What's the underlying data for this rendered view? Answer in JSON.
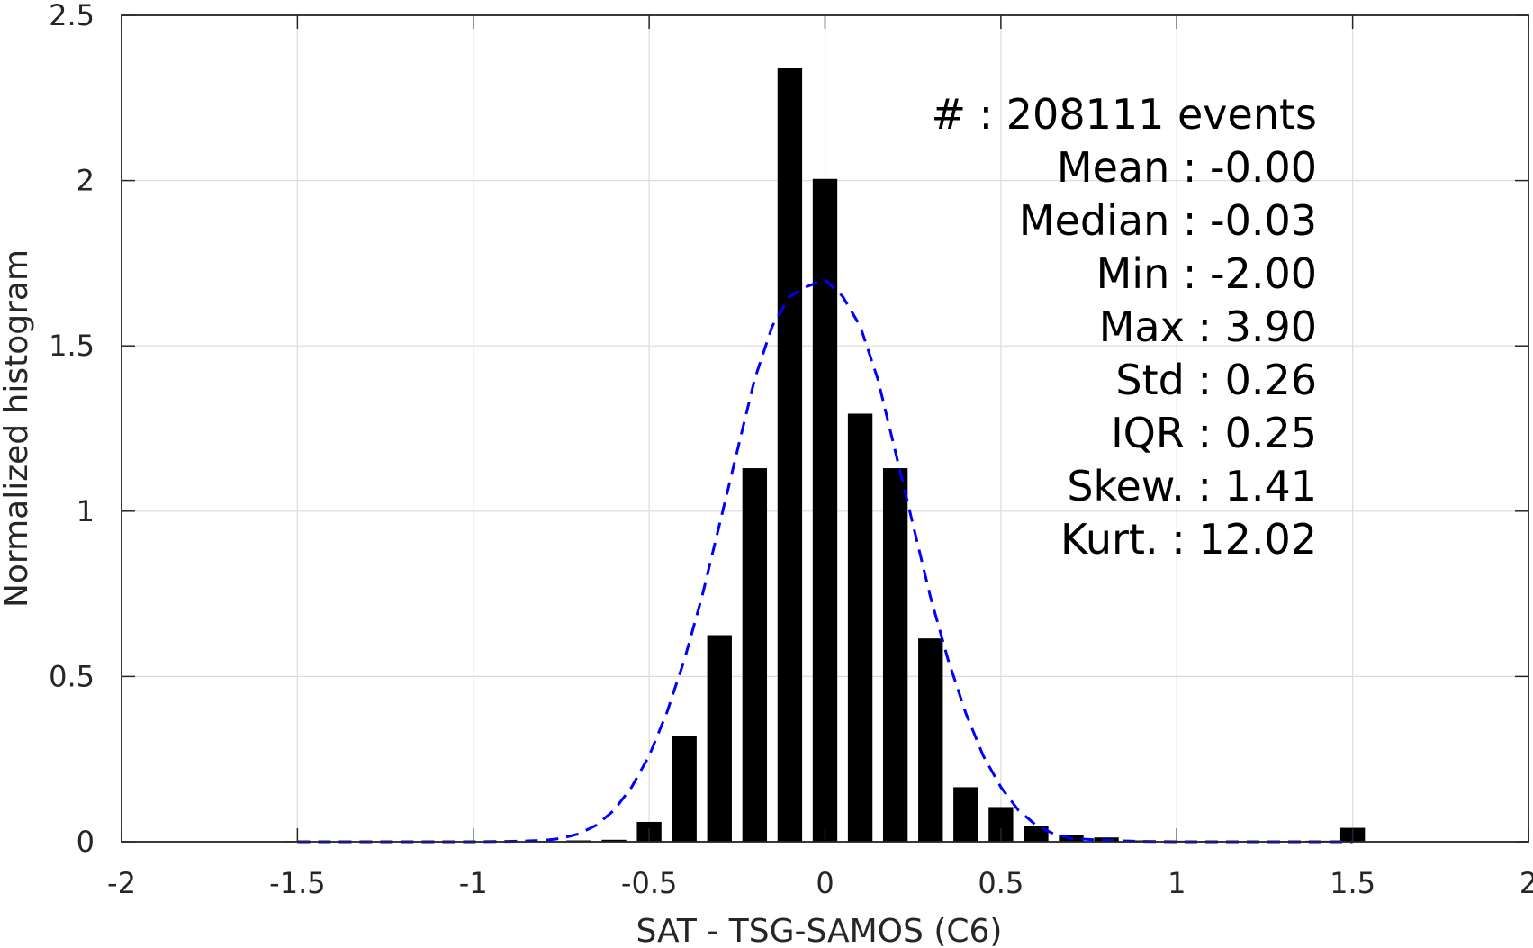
{
  "chart_data": {
    "type": "bar",
    "xlabel": "SAT - TSG-SAMOS (C6)",
    "ylabel": "Normalized histogram",
    "xlim": [
      -2,
      2
    ],
    "ylim": [
      0,
      2.5
    ],
    "xticks": [
      -2,
      -1.5,
      -1,
      -0.5,
      0,
      0.5,
      1,
      1.5,
      2
    ],
    "xtick_labels": [
      "-2",
      "-1.5",
      "-1",
      "-0.5",
      "0",
      "0.5",
      "1",
      "1.5",
      "2"
    ],
    "yticks": [
      0,
      0.5,
      1,
      1.5,
      2,
      2.5
    ],
    "ytick_labels": [
      "0",
      "0.5",
      "1",
      "1.5",
      "2",
      "2.5"
    ],
    "grid": true,
    "bar_width": 0.07,
    "series": [
      {
        "kind": "bars",
        "color": "#000000",
        "x": [
          -1.5,
          -1.4,
          -1.3,
          -1.2,
          -1.1,
          -1.0,
          -0.9,
          -0.8,
          -0.7,
          -0.6,
          -0.5,
          -0.4,
          -0.3,
          -0.2,
          -0.1,
          0.0,
          0.1,
          0.2,
          0.3,
          0.4,
          0.5,
          0.6,
          0.7,
          0.8,
          0.9,
          1.0,
          1.1,
          1.2,
          1.3,
          1.4,
          1.5
        ],
        "values": [
          0.002,
          0.001,
          0.001,
          0.001,
          0.001,
          0.001,
          0.001,
          0.002,
          0.004,
          0.006,
          0.06,
          0.32,
          0.625,
          1.13,
          2.34,
          2.005,
          1.295,
          1.13,
          0.615,
          0.165,
          0.105,
          0.048,
          0.02,
          0.013,
          0.004,
          0.003,
          0.002,
          0.002,
          0.002,
          0.003,
          0.042
        ]
      },
      {
        "kind": "line",
        "style": "dashed",
        "color": "#0000ff",
        "x": [
          -1.5,
          -1.4,
          -1.3,
          -1.2,
          -1.1,
          -1.0,
          -0.9,
          -0.8,
          -0.75,
          -0.7,
          -0.65,
          -0.6,
          -0.55,
          -0.5,
          -0.45,
          -0.4,
          -0.35,
          -0.3,
          -0.25,
          -0.2,
          -0.15,
          -0.1,
          -0.05,
          0.0,
          0.05,
          0.1,
          0.15,
          0.2,
          0.25,
          0.3,
          0.35,
          0.4,
          0.45,
          0.5,
          0.55,
          0.6,
          0.65,
          0.7,
          0.8,
          0.9,
          1.0,
          1.1,
          1.2,
          1.3,
          1.4,
          1.5
        ],
        "values": [
          0.0,
          0.0,
          0.0,
          0.0,
          0.0,
          0.0,
          0.001,
          0.004,
          0.01,
          0.024,
          0.05,
          0.095,
          0.165,
          0.26,
          0.39,
          0.55,
          0.74,
          0.96,
          1.18,
          1.4,
          1.56,
          1.65,
          1.68,
          1.7,
          1.65,
          1.56,
          1.4,
          1.18,
          0.96,
          0.74,
          0.55,
          0.39,
          0.26,
          0.165,
          0.095,
          0.05,
          0.024,
          0.01,
          0.004,
          0.001,
          0.0,
          0.0,
          0.0,
          0.0,
          0.0,
          0.0
        ]
      }
    ],
    "annotations": [
      "#  : 208111 events",
      "Mean : -0.00",
      "Median : -0.03",
      "Min : -2.00",
      "Max : 3.90",
      "Std : 0.26",
      "IQR : 0.25",
      "Skew. : 1.41",
      "Kurt. : 12.02"
    ]
  }
}
